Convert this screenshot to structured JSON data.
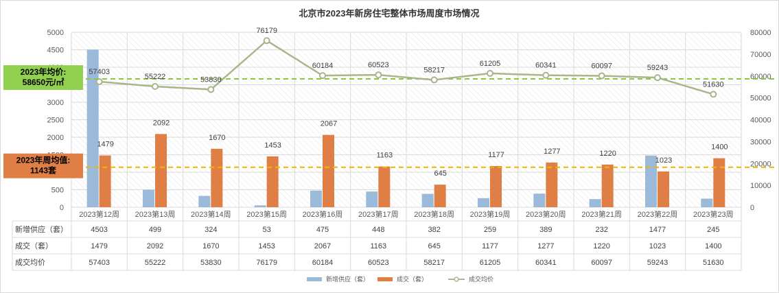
{
  "chart_data": {
    "type": "bar",
    "title": "北京市2023年新房住宅整体市场周度市场情况",
    "categories": [
      "2023第12周",
      "2023第13周",
      "2023第14周",
      "2023第15周",
      "2023第16周",
      "2023第17周",
      "2023第18周",
      "2023第19周",
      "2023第20周",
      "2023第21周",
      "2023第22周",
      "2023第23周"
    ],
    "ylim_left": [
      0,
      5000
    ],
    "yticks_left": [
      0,
      500,
      1000,
      1500,
      2000,
      2500,
      3000,
      3500,
      4000,
      4500,
      5000
    ],
    "ylim_right": [
      0,
      80000
    ],
    "yticks_right": [
      0,
      10000,
      20000,
      30000,
      40000,
      50000,
      60000,
      70000,
      80000
    ],
    "series": [
      {
        "name": "新增供应（套）",
        "type": "bar",
        "axis": "left",
        "color": "#9bb9d8",
        "values": [
          4503,
          499,
          324,
          53,
          475,
          448,
          382,
          259,
          389,
          232,
          1477,
          245
        ]
      },
      {
        "name": "成交（套）",
        "type": "bar",
        "axis": "left",
        "color": "#e07f45",
        "values": [
          1479,
          2092,
          1670,
          1453,
          2067,
          1163,
          645,
          1177,
          1277,
          1220,
          1023,
          1400
        ]
      },
      {
        "name": "成交均价",
        "type": "line",
        "axis": "right",
        "color": "#a9b58c",
        "values": [
          57403,
          55222,
          53830,
          76179,
          60184,
          60523,
          58217,
          61205,
          60341,
          60097,
          59243,
          51630
        ]
      }
    ],
    "table_rows": [
      {
        "label": "新增供应（套）",
        "series": 0
      },
      {
        "label": "成交（套）",
        "series": 1
      },
      {
        "label": "成交均价",
        "series": 2
      }
    ],
    "reference_lines": [
      {
        "axis": "right",
        "value": 58650,
        "color": "#8cc63f",
        "label": "2023年均价:\n58650元/㎡",
        "box_color": "#92d050"
      },
      {
        "axis": "left",
        "value": 1143,
        "color": "#f0b400",
        "label": "2023年周均值:\n1143套",
        "box_color": "#e07f45"
      }
    ],
    "legend_position": "bottom",
    "grid": true
  }
}
